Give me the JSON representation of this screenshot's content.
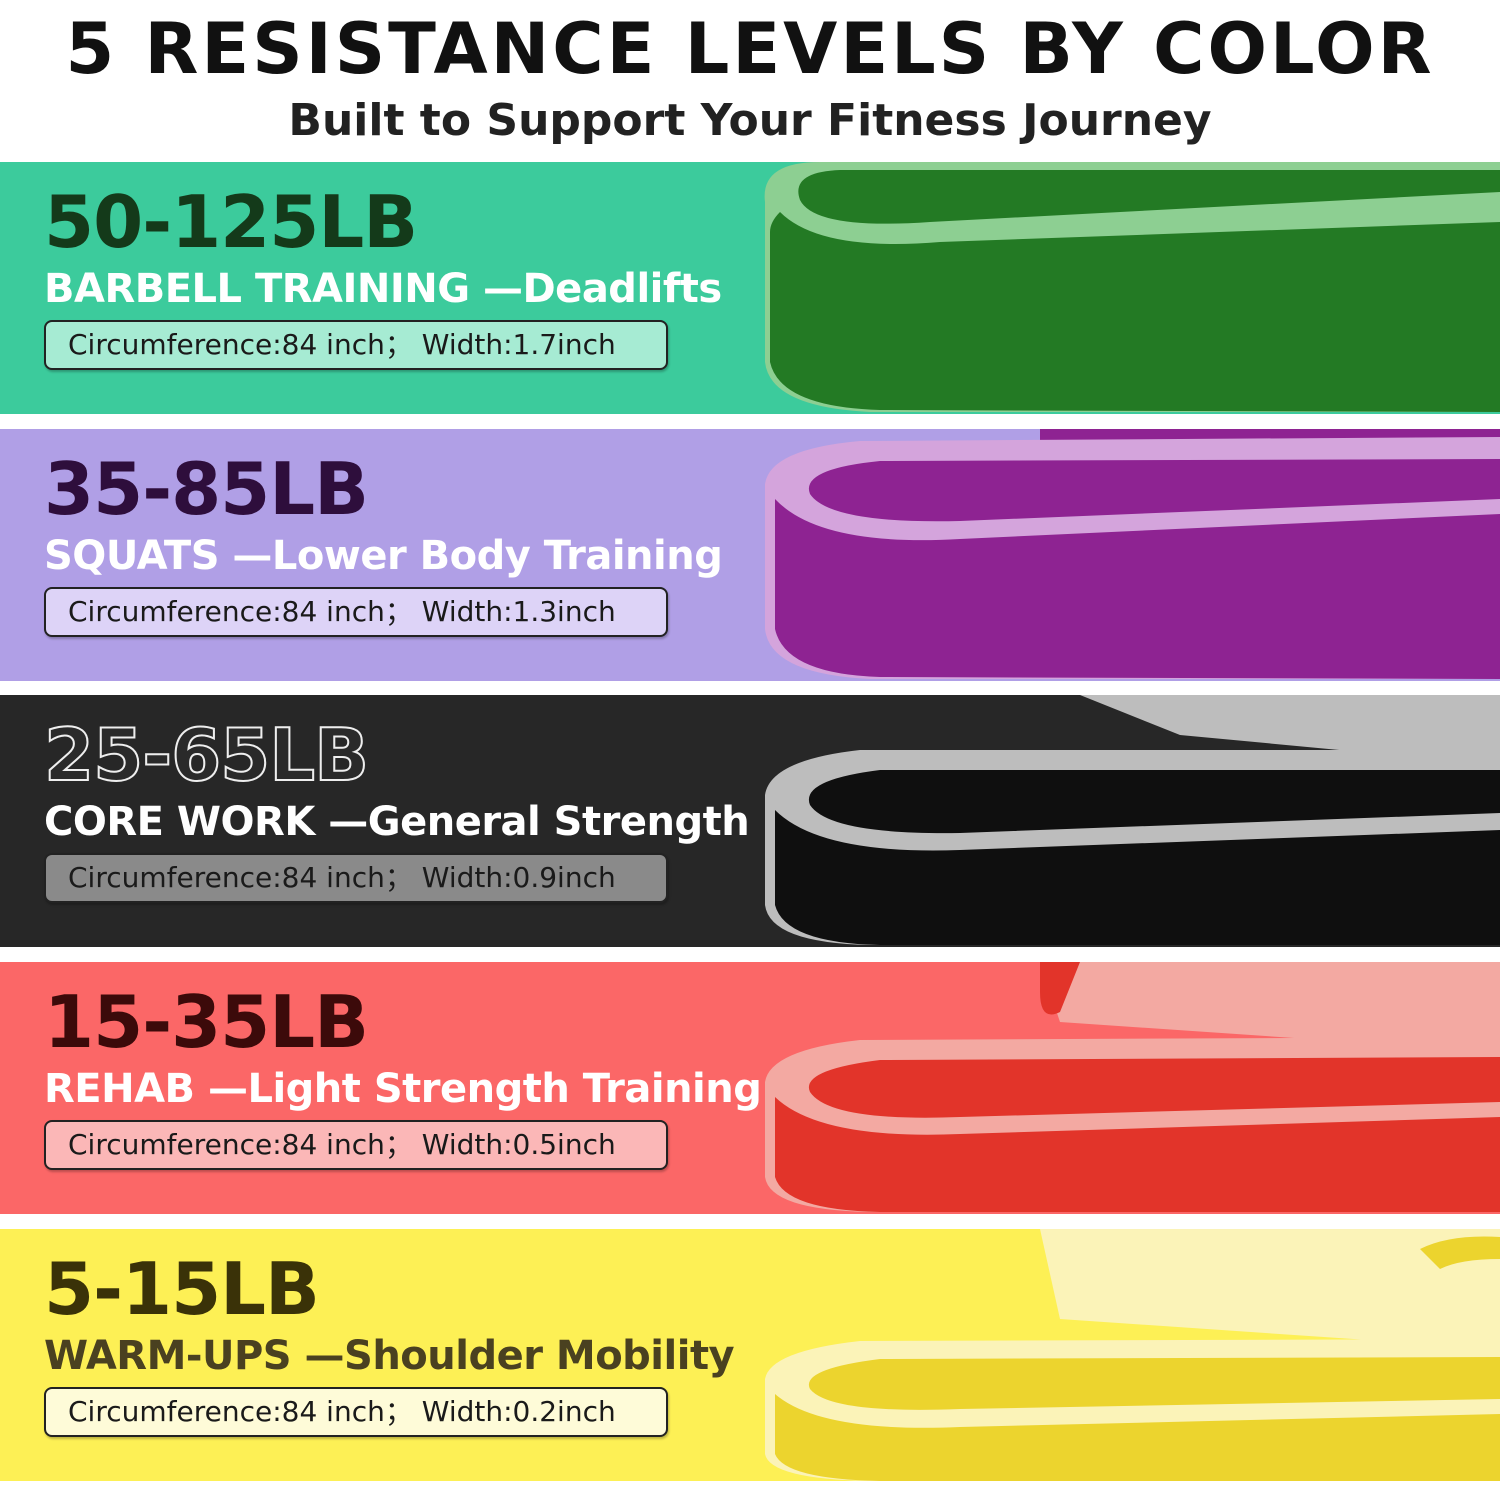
{
  "header": {
    "title": "5 RESISTANCE LEVELS BY COLOR",
    "subtitle": "Built to Support Your Fitness Journey"
  },
  "bands": [
    {
      "weight": "50-125LB",
      "use": "BARBELL TRAINING —Deadlifts",
      "spec": "Circumference:84 inch； Width:1.7inch",
      "colors": {
        "bg": "#3ccb9c",
        "weight": "#143a1a",
        "use": "#ffffff",
        "spec_bg": "#a6ebd3",
        "band": "#237a24",
        "band_light": "#8dcf92"
      }
    },
    {
      "weight": "35-85LB",
      "use": "SQUATS —Lower Body Training",
      "spec": "Circumference:84 inch； Width:1.3inch",
      "colors": {
        "bg": "#b09fe6",
        "weight": "#2e0e3c",
        "use": "#ffffff",
        "spec_bg": "#ddd3f7",
        "band": "#8e2392",
        "band_light": "#d4a4dc"
      }
    },
    {
      "weight": "25-65LB",
      "use": "CORE WORK —General Strength",
      "spec": "Circumference:84 inch； Width:0.9inch",
      "colors": {
        "bg": "#272727",
        "weight": "#eeeeee",
        "use": "#ffffff",
        "spec_bg": "#8a8a8a",
        "band": "#0f0f0f",
        "band_light": "#bdbdbd"
      }
    },
    {
      "weight": "15-35LB",
      "use": "REHAB —Light Strength Training",
      "spec": "Circumference:84 inch； Width:0.5inch",
      "colors": {
        "bg": "#fb6767",
        "weight": "#3c0a0a",
        "use": "#ffffff",
        "spec_bg": "#fbb7b7",
        "band": "#e2342a",
        "band_light": "#f3a9a2"
      }
    },
    {
      "weight": "5-15LB",
      "use": "WARM-UPS —Shoulder Mobility",
      "spec": "Circumference:84 inch； Width:0.2inch",
      "colors": {
        "bg": "#fdf055",
        "weight": "#3a3208",
        "use": "#4a4120",
        "spec_bg": "#fefbd8",
        "band": "#ecd42e",
        "band_light": "#fbf3b8"
      }
    }
  ]
}
